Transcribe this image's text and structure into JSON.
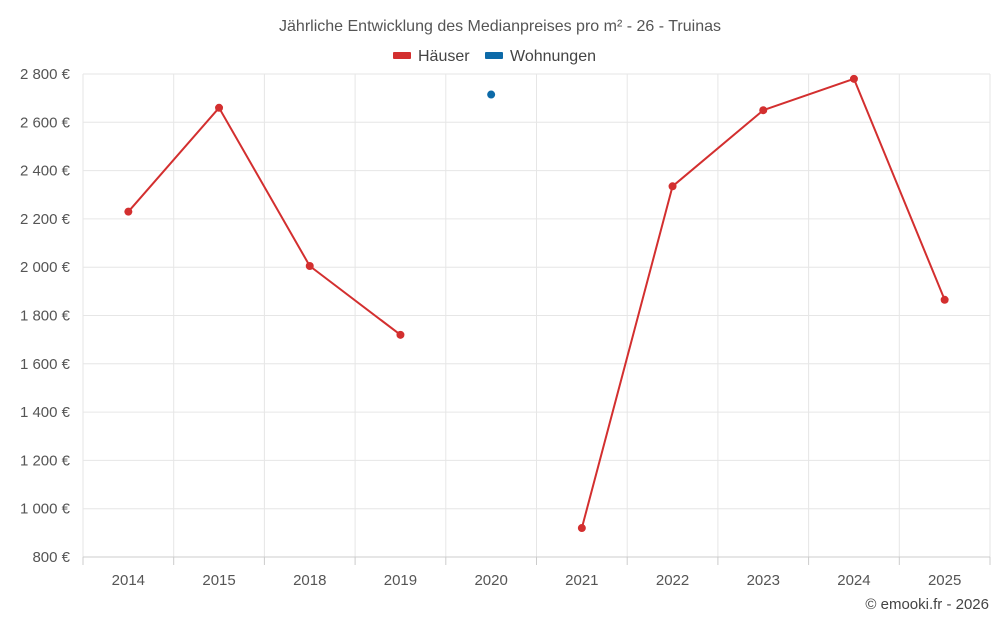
{
  "chart_data": {
    "type": "line",
    "title": "Jährliche Entwicklung des Medianpreises pro m² - 26 - Truinas",
    "categories": [
      "2014",
      "2015",
      "2018",
      "2019",
      "2020",
      "2021",
      "2022",
      "2023",
      "2024",
      "2025"
    ],
    "series": [
      {
        "name": "Häuser",
        "color": "#d32f2f",
        "values": [
          2230,
          2660,
          2005,
          1720,
          null,
          920,
          2335,
          2650,
          2780,
          1865
        ]
      },
      {
        "name": "Wohnungen",
        "color": "#0d6aa8",
        "values": [
          null,
          null,
          null,
          null,
          2715,
          null,
          null,
          null,
          null,
          null
        ]
      }
    ],
    "ylim": [
      800,
      2800
    ],
    "yticks": [
      800,
      1000,
      1200,
      1400,
      1600,
      1800,
      2000,
      2200,
      2400,
      2600,
      2800
    ],
    "ytick_labels": [
      "800 €",
      "1 000 €",
      "1 200 €",
      "1 400 €",
      "1 600 €",
      "1 800 €",
      "2 000 €",
      "2 200 €",
      "2 400 €",
      "2 600 €",
      "2 800 €"
    ],
    "xlabel": "",
    "ylabel": "",
    "grid": true,
    "legend": "top-center"
  },
  "credit": "© emooki.fr - 2026"
}
